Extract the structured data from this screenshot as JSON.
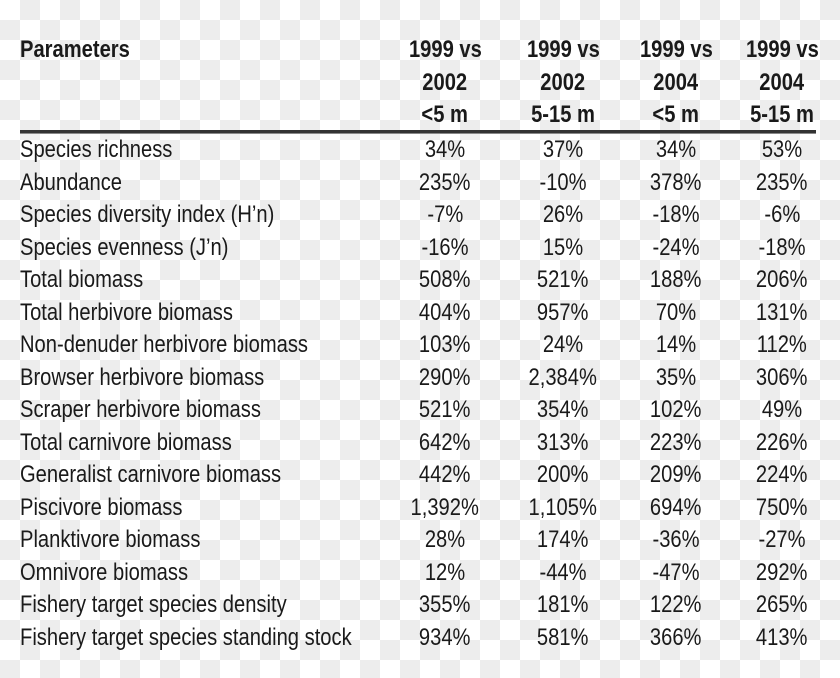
{
  "table": {
    "header": {
      "parameters": "Parameters",
      "columns": [
        {
          "line1": "1999 vs",
          "line2": "2002",
          "line3": "<5 m"
        },
        {
          "line1": "1999 vs",
          "line2": "2002",
          "line3": "5-15 m"
        },
        {
          "line1": "1999 vs",
          "line2": "2004",
          "line3": "<5 m"
        },
        {
          "line1": "1999 vs",
          "line2": "2004",
          "line3": "5-15 m"
        }
      ]
    },
    "rows": [
      {
        "label": "Species richness",
        "values": [
          "34%",
          "37%",
          "34%",
          "53%"
        ]
      },
      {
        "label": "Abundance",
        "values": [
          "235%",
          "-10%",
          "378%",
          "235%"
        ]
      },
      {
        "label": "Species diversity index (H’n)",
        "values": [
          "-7%",
          "26%",
          "-18%",
          "-6%"
        ]
      },
      {
        "label": "Species evenness (J’n)",
        "values": [
          "-16%",
          "15%",
          "-24%",
          "-18%"
        ]
      },
      {
        "label": "Total biomass",
        "values": [
          "508%",
          "521%",
          "188%",
          "206%"
        ]
      },
      {
        "label": "Total herbivore biomass",
        "values": [
          "404%",
          "957%",
          "70%",
          "131%"
        ]
      },
      {
        "label": "Non-denuder herbivore biomass",
        "values": [
          "103%",
          "24%",
          "14%",
          "112%"
        ]
      },
      {
        "label": "Browser herbivore biomass",
        "values": [
          "290%",
          "2,384%",
          "35%",
          "306%"
        ]
      },
      {
        "label": "Scraper herbivore biomass",
        "values": [
          "521%",
          "354%",
          "102%",
          "49%"
        ]
      },
      {
        "label": "Total carnivore biomass",
        "values": [
          "642%",
          "313%",
          "223%",
          "226%"
        ]
      },
      {
        "label": "Generalist carnivore biomass",
        "values": [
          "442%",
          "200%",
          "209%",
          "224%"
        ]
      },
      {
        "label": "Piscivore biomass",
        "values": [
          "1,392%",
          "1,105%",
          "694%",
          "750%"
        ]
      },
      {
        "label": "Planktivore biomass",
        "values": [
          "28%",
          "174%",
          "-36%",
          "-27%"
        ]
      },
      {
        "label": "Omnivore biomass",
        "values": [
          "12%",
          "-44%",
          "-47%",
          "292%"
        ]
      },
      {
        "label": "Fishery target species density",
        "values": [
          "355%",
          "181%",
          "122%",
          "265%"
        ]
      },
      {
        "label": "Fishery target species standing stock",
        "values": [
          "934%",
          "581%",
          "366%",
          "413%"
        ]
      }
    ]
  }
}
